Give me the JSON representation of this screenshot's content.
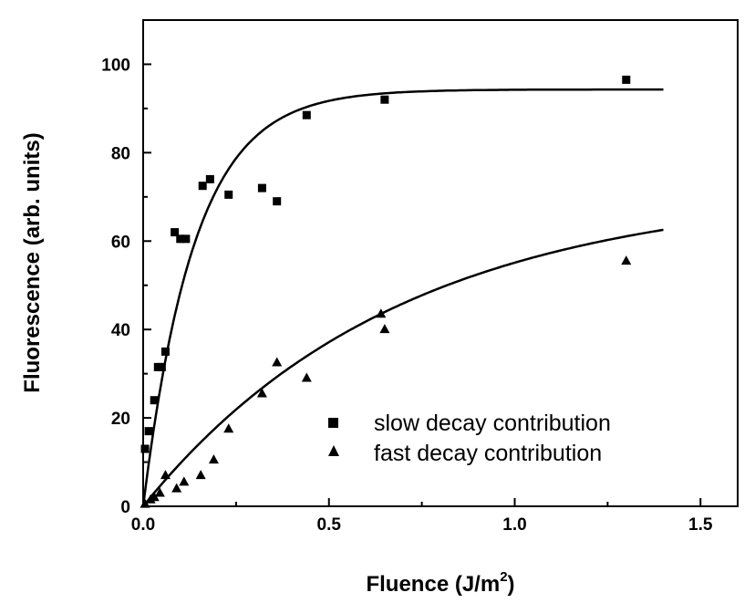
{
  "chart_data": {
    "type": "scatter",
    "title": "",
    "xlabel": "Fluence (J/m",
    "xlabel_sup": "2",
    "xlabel_end": ")",
    "ylabel": "Fluorescence (arb. units)",
    "xlim": [
      0,
      1.6
    ],
    "ylim": [
      0,
      110
    ],
    "xticks": [
      0.0,
      0.5,
      1.0,
      1.5
    ],
    "xtick_labels": [
      "0.0",
      "0.5",
      "1.0",
      "1.5"
    ],
    "yticks": [
      0,
      20,
      40,
      60,
      80,
      100
    ],
    "ytick_labels": [
      "0",
      "20",
      "40",
      "60",
      "80",
      "100"
    ],
    "grid": false,
    "legend_position": "bottom-right",
    "series": [
      {
        "name": "slow decay contribution",
        "marker": "square",
        "color": "#000000",
        "points": [
          [
            0.005,
            13
          ],
          [
            0.015,
            17
          ],
          [
            0.03,
            24
          ],
          [
            0.04,
            31.5
          ],
          [
            0.05,
            31.5
          ],
          [
            0.06,
            35
          ],
          [
            0.085,
            62
          ],
          [
            0.1,
            60.5
          ],
          [
            0.115,
            60.5
          ],
          [
            0.16,
            72.5
          ],
          [
            0.18,
            74
          ],
          [
            0.23,
            70.5
          ],
          [
            0.32,
            72
          ],
          [
            0.36,
            69
          ],
          [
            0.44,
            88.5
          ],
          [
            0.65,
            92
          ],
          [
            1.3,
            96.5
          ]
        ],
        "fit": {
          "A": 94.3,
          "k": 7.2
        }
      },
      {
        "name": "fast decay contribution",
        "marker": "triangle",
        "color": "#000000",
        "points": [
          [
            0.005,
            0.5
          ],
          [
            0.02,
            1.5
          ],
          [
            0.03,
            2
          ],
          [
            0.045,
            3
          ],
          [
            0.06,
            7
          ],
          [
            0.09,
            4
          ],
          [
            0.11,
            5.5
          ],
          [
            0.155,
            7
          ],
          [
            0.19,
            10.5
          ],
          [
            0.23,
            17.5
          ],
          [
            0.32,
            25.5
          ],
          [
            0.36,
            32.5
          ],
          [
            0.44,
            29
          ],
          [
            0.64,
            43.5
          ],
          [
            0.65,
            40
          ],
          [
            1.3,
            55.5
          ]
        ],
        "fit": {
          "A": 72,
          "k": 1.45
        }
      }
    ]
  }
}
